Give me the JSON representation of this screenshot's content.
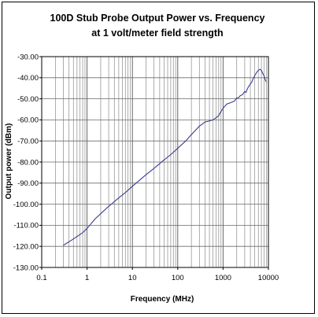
{
  "chart_data": {
    "type": "line",
    "title": "100D Stub Probe Output Power vs. Frequency",
    "subtitle": "at 1 volt/meter field strength",
    "xlabel": "Frequency (MHz)",
    "ylabel": "Output power (dBm)",
    "x_scale": "log",
    "xlim": [
      0.1,
      10000
    ],
    "ylim": [
      -130,
      -30
    ],
    "x_ticks": [
      0.1,
      1,
      10,
      100,
      1000,
      10000
    ],
    "x_tick_labels": [
      "0.1",
      "1",
      "10",
      "100",
      "1000",
      "10000"
    ],
    "y_ticks": [
      -30,
      -40,
      -50,
      -60,
      -70,
      -80,
      -90,
      -100,
      -110,
      -120,
      -130
    ],
    "y_tick_labels": [
      "-30.00",
      "-40.00",
      "-50.00",
      "-60.00",
      "-70.00",
      "-80.00",
      "-90.00",
      "-100.00",
      "-110.00",
      "-120.00",
      "-130.00"
    ],
    "grid": true,
    "line_color": "#3b3b8f",
    "series": [
      {
        "points": [
          [
            0.3,
            -119.5
          ],
          [
            0.5,
            -116.5
          ],
          [
            0.8,
            -113.5
          ],
          [
            1.0,
            -111.5
          ],
          [
            1.5,
            -107
          ],
          [
            2.0,
            -104.5
          ],
          [
            3.0,
            -101
          ],
          [
            5.0,
            -97
          ],
          [
            7.0,
            -94.5
          ],
          [
            10,
            -91.5
          ],
          [
            20,
            -86
          ],
          [
            30,
            -83
          ],
          [
            50,
            -79
          ],
          [
            70,
            -76.5
          ],
          [
            100,
            -73.5
          ],
          [
            150,
            -70
          ],
          [
            200,
            -67
          ],
          [
            300,
            -63
          ],
          [
            400,
            -61
          ],
          [
            500,
            -60.5
          ],
          [
            600,
            -60
          ],
          [
            700,
            -59
          ],
          [
            800,
            -58
          ],
          [
            900,
            -56
          ],
          [
            1000,
            -54.5
          ],
          [
            1200,
            -52.5
          ],
          [
            1400,
            -52
          ],
          [
            1600,
            -51.5
          ],
          [
            1800,
            -51
          ],
          [
            2000,
            -49.5
          ],
          [
            2200,
            -49.5
          ],
          [
            2400,
            -48.5
          ],
          [
            2700,
            -48
          ],
          [
            3000,
            -46.5
          ],
          [
            3200,
            -47
          ],
          [
            3400,
            -45.5
          ],
          [
            3700,
            -44
          ],
          [
            4000,
            -43
          ],
          [
            4300,
            -42
          ],
          [
            4600,
            -40.5
          ],
          [
            5000,
            -39
          ],
          [
            5500,
            -37.5
          ],
          [
            6000,
            -36.5
          ],
          [
            6500,
            -36
          ],
          [
            7000,
            -36.5
          ],
          [
            7500,
            -38
          ],
          [
            8000,
            -39
          ],
          [
            8500,
            -41
          ],
          [
            9000,
            -42
          ]
        ]
      }
    ]
  }
}
